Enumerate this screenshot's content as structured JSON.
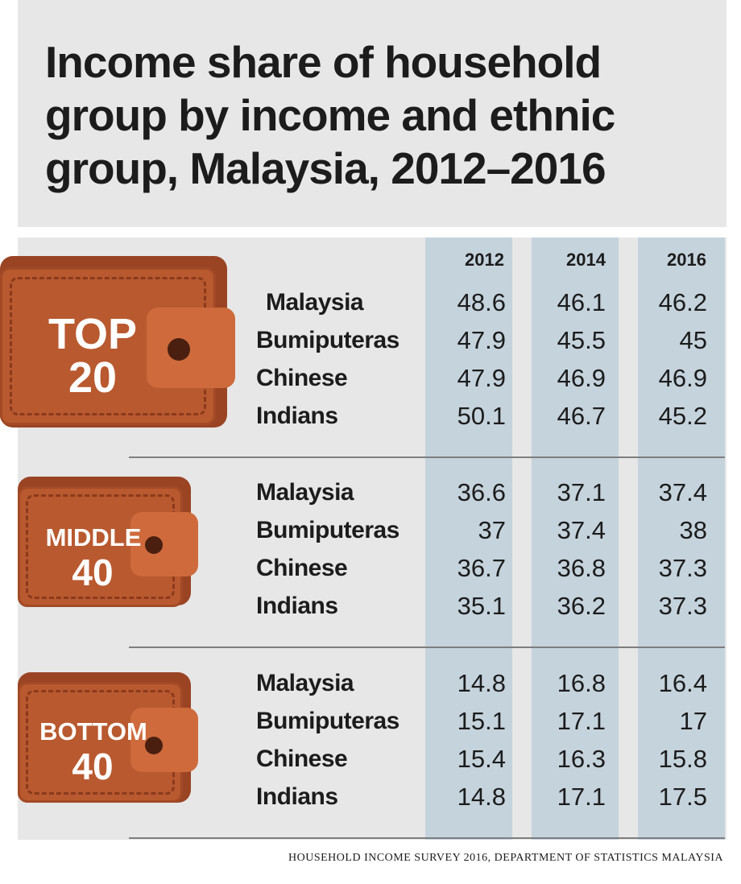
{
  "chart_data": {
    "type": "table",
    "title": "Income share of household group by income and ethnic group, Malaysia, 2012–2016",
    "columns": [
      "2012",
      "2014",
      "2016"
    ],
    "groups": [
      {
        "label_line1": "TOP",
        "label_line2": "20",
        "rows": [
          {
            "name": "Malaysia",
            "values": [
              "48.6",
              "46.1",
              "46.2"
            ]
          },
          {
            "name": "Bumiputeras",
            "values": [
              "47.9",
              "45.5",
              "45"
            ]
          },
          {
            "name": "Chinese",
            "values": [
              "47.9",
              "46.9",
              "46.9"
            ]
          },
          {
            "name": "Indians",
            "values": [
              "50.1",
              "46.7",
              "45.2"
            ]
          }
        ]
      },
      {
        "label_line1": "MIDDLE",
        "label_line2": "40",
        "rows": [
          {
            "name": "Malaysia",
            "values": [
              "36.6",
              "37.1",
              "37.4"
            ]
          },
          {
            "name": "Bumiputeras",
            "values": [
              "37",
              "37.4",
              "38"
            ]
          },
          {
            "name": "Chinese",
            "values": [
              "36.7",
              "36.8",
              "37.3"
            ]
          },
          {
            "name": "Indians",
            "values": [
              "35.1",
              "36.2",
              "37.3"
            ]
          }
        ]
      },
      {
        "label_line1": "BOTTOM",
        "label_line2": "40",
        "rows": [
          {
            "name": "Malaysia",
            "values": [
              "14.8",
              "16.8",
              "16.4"
            ]
          },
          {
            "name": "Bumiputeras",
            "values": [
              "15.1",
              "17.1",
              "17"
            ]
          },
          {
            "name": "Chinese",
            "values": [
              "15.4",
              "16.3",
              "15.8"
            ]
          },
          {
            "name": "Indians",
            "values": [
              "14.8",
              "17.1",
              "17.5"
            ]
          }
        ]
      }
    ],
    "source": "HOUSEHOLD INCOME SURVEY 2016, DEPARTMENT OF STATISTICS MALAYSIA"
  },
  "colors": {
    "title_background": "#e7e7e7",
    "column_band": "#c5d3dd",
    "wallet_body": "#b9592f",
    "wallet_flap": "#ce6a3c",
    "text": "#1c1c1c"
  },
  "icons": [
    "wallet-icon"
  ]
}
